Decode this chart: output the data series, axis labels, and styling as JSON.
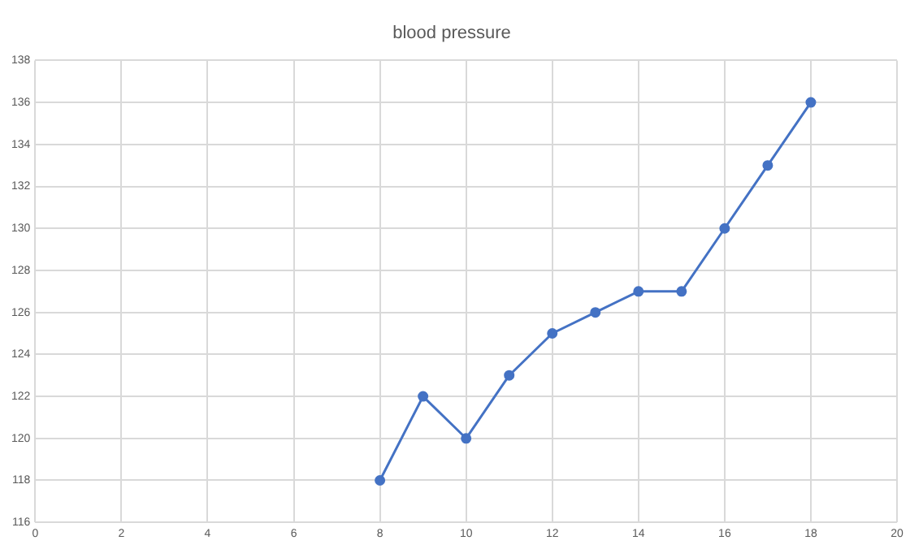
{
  "chart_data": {
    "type": "line",
    "title": "blood pressure",
    "x": [
      8,
      9,
      10,
      11,
      12,
      13,
      14,
      15,
      16,
      17,
      18
    ],
    "series": [
      {
        "color": "#4472c4",
        "values": [
          118,
          122,
          120,
          123,
          125,
          126,
          127,
          127,
          130,
          133,
          136
        ]
      }
    ],
    "xlim": [
      0,
      20
    ],
    "xticks": [
      0,
      2,
      4,
      6,
      8,
      10,
      12,
      14,
      16,
      18,
      20
    ],
    "ylim": [
      116,
      138
    ],
    "yticks": [
      116,
      118,
      120,
      122,
      124,
      126,
      128,
      130,
      132,
      134,
      136,
      138
    ],
    "grid": true,
    "marker": "circle",
    "line_style": "solid",
    "legend": false
  }
}
